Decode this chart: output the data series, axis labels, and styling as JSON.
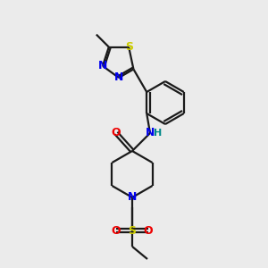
{
  "background_color": "#ebebeb",
  "bond_color": "#1a1a1a",
  "atom_colors": {
    "N": "#0000ee",
    "O": "#ee0000",
    "S_sulfonyl": "#cccc00",
    "S_thiadiazole": "#cccc00",
    "H": "#008888"
  },
  "figsize": [
    3.0,
    3.0
  ],
  "dpi": 100
}
